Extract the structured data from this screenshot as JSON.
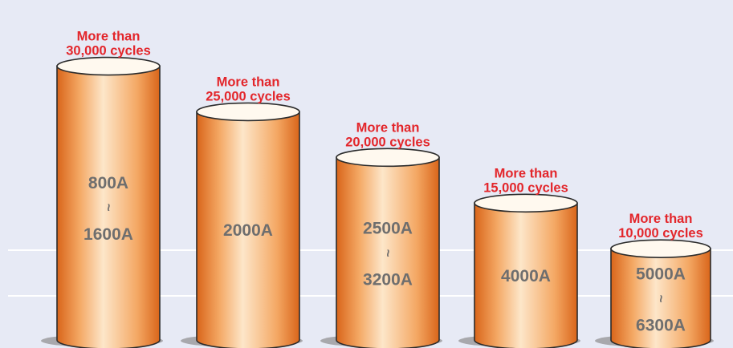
{
  "colors": {
    "background": "#e7eaf5",
    "cylinder_dark": "#d9651a",
    "cylinder_mid": "#f4a864",
    "cylinder_light": "#fde6c9",
    "top_fill": "#fff9ef",
    "outline": "#2b2b2b",
    "cycle_label": "#e3262b",
    "rating_label": "#6e6e6e",
    "shadow": "#a8a8ac",
    "gridline": "#ffffff"
  },
  "chart_data": {
    "type": "bar",
    "title": "",
    "xlabel": "",
    "ylabel": "",
    "ylim": [
      0,
      34000
    ],
    "grid": "two horizontal lines",
    "categories": [
      "800A ~ 1600A",
      "2000A",
      "2500A ~ 3200A",
      "4000A",
      "5000A ~ 6300A"
    ],
    "values": [
      30000,
      25000,
      20000,
      15000,
      10000
    ],
    "bars": [
      {
        "cycles_line1": "More than",
        "cycles_line2": "30,000 cycles",
        "rating_top": "800A",
        "rating_sep": "~",
        "rating_bottom": "1600A"
      },
      {
        "cycles_line1": "More than",
        "cycles_line2": "25,000 cycles",
        "rating_top": "2000A",
        "rating_sep": "",
        "rating_bottom": ""
      },
      {
        "cycles_line1": "More than",
        "cycles_line2": "20,000 cycles",
        "rating_top": "2500A",
        "rating_sep": "~",
        "rating_bottom": "3200A"
      },
      {
        "cycles_line1": "More than",
        "cycles_line2": "15,000 cycles",
        "rating_top": "4000A",
        "rating_sep": "",
        "rating_bottom": ""
      },
      {
        "cycles_line1": "More than",
        "cycles_line2": "10,000 cycles",
        "rating_top": "5000A",
        "rating_sep": "~",
        "rating_bottom": "6300A"
      }
    ]
  }
}
